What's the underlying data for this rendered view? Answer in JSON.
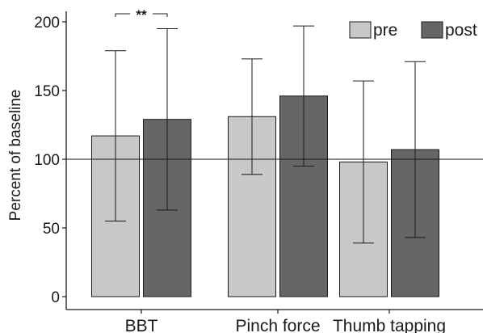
{
  "chart_data": {
    "type": "bar",
    "title": "",
    "xlabel": "",
    "ylabel": "Percent of baseline",
    "ylim": [
      0,
      200
    ],
    "yticks": [
      0,
      50,
      100,
      150,
      200
    ],
    "reference_line": 100,
    "categories": [
      "BBT",
      "Pinch force",
      "Thumb tapping"
    ],
    "series": [
      {
        "name": "pre",
        "color": "#c8c8c8",
        "values": [
          117,
          131,
          98
        ],
        "error_upper": [
          179,
          173,
          157
        ],
        "error_lower": [
          55,
          89,
          39
        ]
      },
      {
        "name": "post",
        "color": "#666666",
        "values": [
          129,
          146,
          107
        ],
        "error_upper": [
          195,
          197,
          171
        ],
        "error_lower": [
          63,
          95,
          43
        ]
      }
    ],
    "annotations": [
      {
        "category": "BBT",
        "text": "**",
        "between": [
          "pre",
          "post"
        ]
      }
    ],
    "legend_position": "top-right",
    "grid": false
  }
}
